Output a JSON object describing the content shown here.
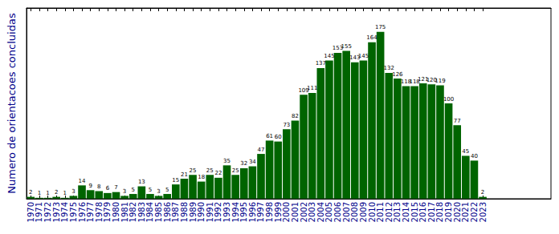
{
  "chart_data": {
    "type": "bar",
    "y_label": "Numero de orientacoes concluidas",
    "x": [
      1970,
      1971,
      1972,
      1973,
      1974,
      1975,
      1976,
      1977,
      1978,
      1979,
      1980,
      1981,
      1982,
      1983,
      1984,
      1985,
      1986,
      1987,
      1988,
      1989,
      1990,
      1991,
      1992,
      1993,
      1994,
      1995,
      1996,
      1997,
      1998,
      1999,
      2000,
      2001,
      2002,
      2003,
      2004,
      2005,
      2006,
      2007,
      2008,
      2009,
      2010,
      2011,
      2012,
      2013,
      2014,
      2015,
      2016,
      2017,
      2018,
      2019,
      2020,
      2021,
      2022,
      2023
    ],
    "values": [
      2,
      1,
      1,
      2,
      1,
      3,
      14,
      9,
      8,
      6,
      7,
      3,
      5,
      13,
      5,
      3,
      5,
      15,
      21,
      25,
      18,
      25,
      22,
      35,
      25,
      32,
      34,
      47,
      61,
      60,
      73,
      82,
      109,
      111,
      137,
      145,
      153,
      155,
      143,
      145,
      164,
      175,
      132,
      126,
      118,
      118,
      121,
      120,
      119,
      100,
      77,
      45,
      40,
      2
    ],
    "color": "#006400",
    "xlim": [
      1969.5,
      2031
    ],
    "xticks": [
      1970,
      1971,
      1972,
      1973,
      1974,
      1975,
      1976,
      1977,
      1978,
      1979,
      1980,
      1981,
      1982,
      1983,
      1984,
      1985,
      1986,
      1987,
      1988,
      1989,
      1990,
      1991,
      1992,
      1993,
      1994,
      1995,
      1996,
      1997,
      1998,
      1999,
      2000,
      2001,
      2002,
      2003,
      2004,
      2005,
      2006,
      2007,
      2008,
      2009,
      2010,
      2011,
      2012,
      2013,
      2014,
      2015,
      2016,
      2017,
      2018,
      2019,
      2020,
      2021,
      2022,
      2023
    ],
    "ylim": [
      0,
      200
    ],
    "tick_labels": "x",
    "data_labels": true,
    "grid": false
  }
}
